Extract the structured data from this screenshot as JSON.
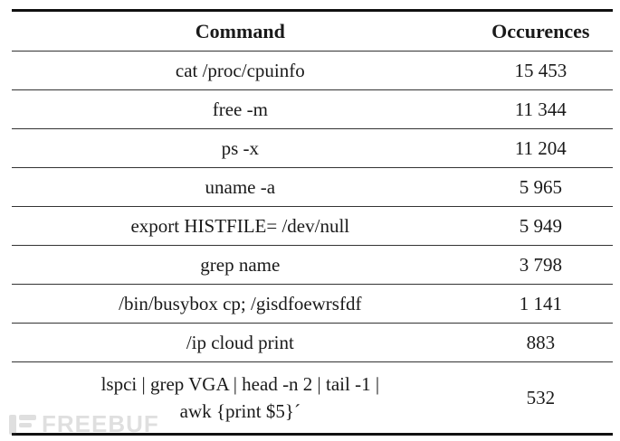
{
  "table": {
    "headers": {
      "command": "Command",
      "occurences": "Occurences"
    },
    "rows": [
      {
        "command": "cat /proc/cpuinfo",
        "occurences": "15 453"
      },
      {
        "command": "free -m",
        "occurences": "11 344"
      },
      {
        "command": "ps -x",
        "occurences": "11 204"
      },
      {
        "command": "uname -a",
        "occurences": "5 965"
      },
      {
        "command": "export HISTFILE= /dev/null",
        "occurences": "5 949"
      },
      {
        "command": "grep name",
        "occurences": "3 798"
      },
      {
        "command": "/bin/busybox cp; /gisdfoewrsfdf",
        "occurences": "1 141"
      },
      {
        "command": "/ip cloud print",
        "occurences": "883"
      },
      {
        "command_line1": "lspci | grep VGA | head -n 2 | tail -1 |",
        "command_line2": "awk {print $5}´",
        "occurences": "532"
      }
    ]
  },
  "watermark": {
    "text": "FREEBUF"
  }
}
